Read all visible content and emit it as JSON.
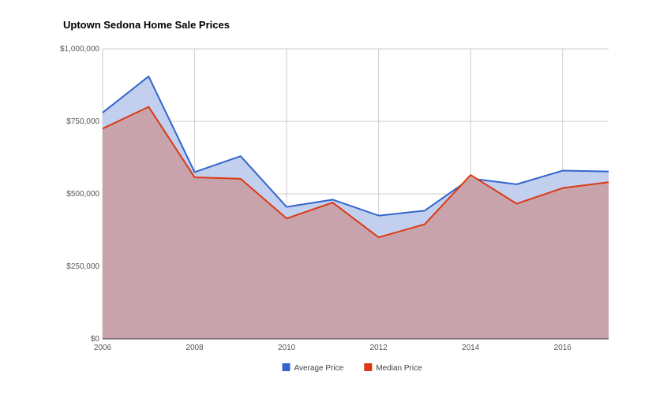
{
  "chart_data": {
    "type": "area",
    "title": "Uptown Sedona Home Sale Prices",
    "xlabel": "",
    "ylabel": "",
    "x": [
      2006,
      2007,
      2008,
      2009,
      2010,
      2011,
      2012,
      2013,
      2014,
      2015,
      2016,
      2017
    ],
    "xlim": [
      2006,
      2017
    ],
    "ylim": [
      0,
      1000000
    ],
    "x_ticks": [
      "2006",
      "2008",
      "2010",
      "2012",
      "2014",
      "2016"
    ],
    "y_ticks": [
      "$0",
      "$250,000",
      "$500,000",
      "$750,000",
      "$1,000,000"
    ],
    "grid": true,
    "legend_position": "bottom",
    "series": [
      {
        "name": "Average Price",
        "color": "#3366cc",
        "fill": "#c2cfef",
        "values": [
          780000,
          905000,
          575000,
          630000,
          455000,
          480000,
          425000,
          442000,
          553000,
          533000,
          580000,
          577000
        ]
      },
      {
        "name": "Median Price",
        "color": "#dc3912",
        "fill": "#c9a3ab",
        "values": [
          725000,
          800000,
          557000,
          552000,
          415000,
          470000,
          350000,
          395000,
          565000,
          466000,
          520000,
          540000
        ]
      }
    ]
  }
}
